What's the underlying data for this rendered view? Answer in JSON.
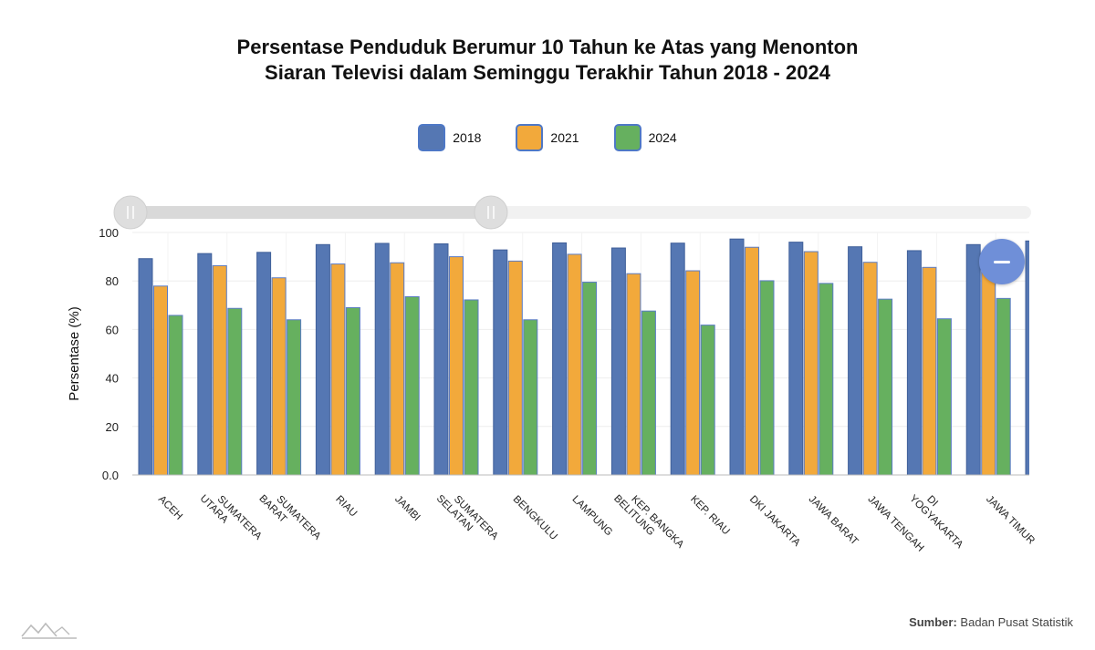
{
  "title": {
    "line1": "Persentase Penduduk Berumur 10 Tahun ke Atas yang Menonton",
    "line2": "Siaran Televisi dalam Seminggu Terakhir Tahun 2018 - 2024"
  },
  "source": {
    "label": "Sumber:",
    "text": "Badan Pusat Statistik"
  },
  "icons": {
    "zoom": "minus-icon",
    "logo": "mountain-logo-icon"
  },
  "colors": {
    "s2018": "#5577b3",
    "s2021": "#f2a93b",
    "s2024": "#66b05f",
    "zoom": "#6f8fd8"
  },
  "chart_data": {
    "type": "bar",
    "title": "Persentase Penduduk Berumur 10 Tahun ke Atas yang Menonton Siaran Televisi dalam Seminggu Terakhir Tahun 2018 - 2024",
    "ylabel": "Persentase (%)",
    "xlabel": "",
    "ylim": [
      0,
      100
    ],
    "yticks": [
      "0.0",
      "20",
      "40",
      "60",
      "80",
      "100"
    ],
    "grid": true,
    "legend_position": "top-center",
    "categories": [
      "ACEH",
      "SUMATERA UTARA",
      "SUMATERA BARAT",
      "RIAU",
      "JAMBI",
      "SUMATERA SELATAN",
      "BENGKULU",
      "LAMPUNG",
      "KEP. BANGKA BELITUNG",
      "KEP. RIAU",
      "DKI JAKARTA",
      "JAWA BARAT",
      "JAWA TENGAH",
      "DI YOGYAKARTA",
      "JAWA TIMUR"
    ],
    "series": [
      {
        "name": "2018",
        "color": "#5577b3",
        "values": [
          89.2,
          91.3,
          91.8,
          95.0,
          95.5,
          95.3,
          92.8,
          95.7,
          93.6,
          95.6,
          97.3,
          96.0,
          94.1,
          92.5,
          95.0
        ]
      },
      {
        "name": "2021",
        "color": "#f2a93b",
        "values": [
          77.9,
          86.3,
          81.3,
          87.0,
          87.5,
          90.0,
          88.2,
          91.0,
          83.0,
          84.2,
          93.9,
          92.1,
          87.7,
          85.6,
          91.5
        ]
      },
      {
        "name": "2024",
        "color": "#66b05f",
        "values": [
          65.8,
          68.7,
          64.0,
          69.0,
          73.5,
          72.2,
          64.0,
          79.5,
          67.6,
          61.8,
          80.1,
          79.0,
          72.5,
          64.4,
          72.8
        ]
      }
    ]
  }
}
